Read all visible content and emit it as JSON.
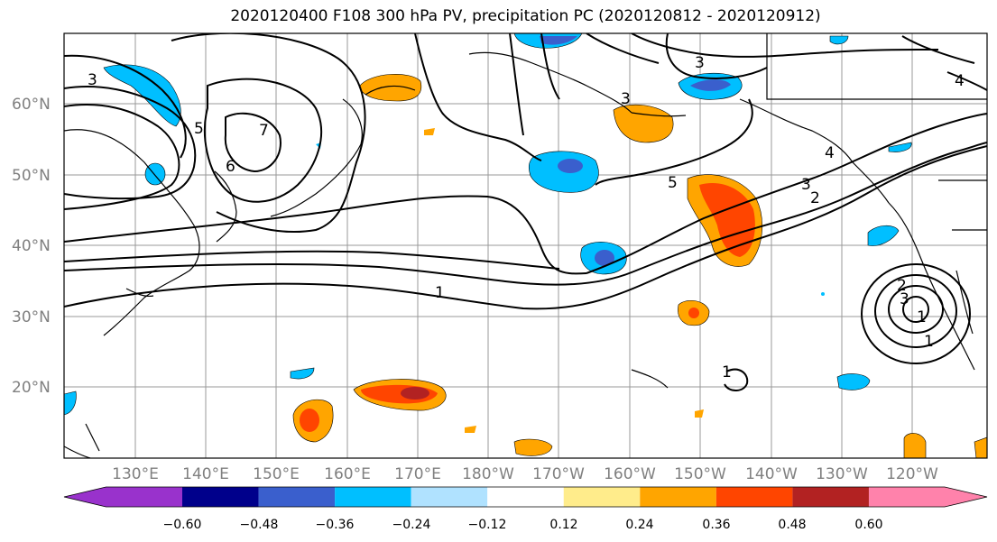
{
  "title": "2020120400 F108 300 hPa PV, precipitation PC (2020120812 - 2020120912)",
  "latitude_labels": [
    "60°N",
    "50°N",
    "40°N",
    "30°N",
    "20°N"
  ],
  "longitude_labels": [
    "130°E",
    "140°E",
    "150°E",
    "160°E",
    "170°E",
    "180°W",
    "170°W",
    "160°W",
    "150°W",
    "140°W",
    "130°W",
    "120°W"
  ],
  "colorbar": {
    "colors": [
      "#9932cc",
      "#00008b",
      "#3a5fcd",
      "#00bfff",
      "#b0e2ff",
      "#ffffff",
      "#ffec8b",
      "#ffa500",
      "#ff4500",
      "#b22222",
      "#ff82ab"
    ],
    "tick_labels": [
      "−0.60",
      "−0.48",
      "−0.36",
      "−0.24",
      "−0.12",
      "0.12",
      "0.24",
      "0.36",
      "0.48",
      "0.60"
    ]
  },
  "contour_labels": [
    "3",
    "7",
    "6",
    "5",
    "5",
    "3",
    "3",
    "3",
    "2",
    "1",
    "4",
    "4",
    "1",
    "1",
    "2",
    "3",
    "1"
  ]
}
